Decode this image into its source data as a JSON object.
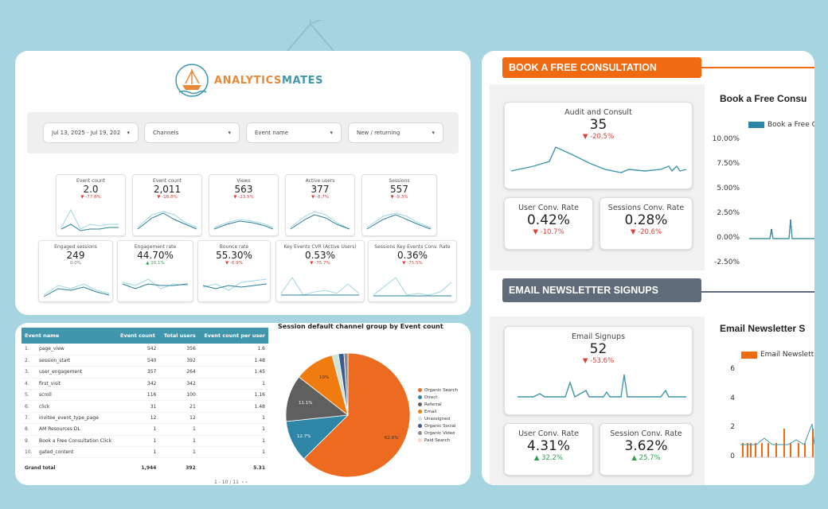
{
  "logo": {
    "part1": "ANALYTICS",
    "part2": "MATES"
  },
  "filters": [
    {
      "label": "Jul 13, 2025 - Jul 19, 202"
    },
    {
      "label": "Channels"
    },
    {
      "label": "Event name"
    },
    {
      "label": "New / returning"
    }
  ],
  "kpis_row1": [
    {
      "label": "Event count",
      "value": "2.0",
      "change": "▼ -77.8%",
      "dir": "down"
    },
    {
      "label": "Event count",
      "value": "2,011",
      "change": "▼ -18.8%",
      "dir": "down"
    },
    {
      "label": "Views",
      "value": "563",
      "change": "▼ -23.5%",
      "dir": "down"
    },
    {
      "label": "Active users",
      "value": "377",
      "change": "▼ -8.7%",
      "dir": "down"
    },
    {
      "label": "Sessions",
      "value": "557",
      "change": "▼ -9.3%",
      "dir": "down"
    }
  ],
  "kpis_row2": [
    {
      "label": "Engaged sessions",
      "value": "249",
      "change": "0.0%",
      "dir": "flat"
    },
    {
      "label": "Engagement rate",
      "value": "44.70%",
      "change": "▲ 10.1%",
      "dir": "up"
    },
    {
      "label": "Bounce rate",
      "value": "55.30%",
      "change": "▼ -6.9%",
      "dir": "down"
    },
    {
      "label": "Key Events CVR (Active Users)",
      "value": "0.53%",
      "change": "▼ -75.7%",
      "dir": "down"
    },
    {
      "label": "Sessions Key Events Conv. Rate",
      "value": "0.36%",
      "change": "▼ -75.5%",
      "dir": "down"
    }
  ],
  "table": {
    "headers": [
      "Event name",
      "Event count",
      "Total users",
      "Event count per user"
    ],
    "rows": [
      [
        "1.",
        "page_view",
        "542",
        "356",
        "1.6"
      ],
      [
        "2.",
        "session_start",
        "540",
        "392",
        "1.48"
      ],
      [
        "3.",
        "user_engagement",
        "357",
        "264",
        "1.45"
      ],
      [
        "4.",
        "first_visit",
        "342",
        "342",
        "1"
      ],
      [
        "5.",
        "scroll",
        "116",
        "100",
        "1.16"
      ],
      [
        "6.",
        "click",
        "31",
        "21",
        "1.48"
      ],
      [
        "7.",
        "invitee_event_type_page",
        "12",
        "12",
        "1"
      ],
      [
        "8.",
        "AM Resources DL",
        "1",
        "1",
        "1"
      ],
      [
        "9.",
        "Book a Free Consultation Click",
        "1",
        "1",
        "1"
      ],
      [
        "10.",
        "gated_content",
        "1",
        "1",
        "1"
      ]
    ],
    "total": [
      "Grand total",
      "1,944",
      "392",
      "5.31"
    ],
    "pager": "1 - 10 / 11"
  },
  "pie": {
    "title": "Session default channel group by Event count",
    "legend": [
      {
        "name": "Organic Search",
        "color": "#ed6b21"
      },
      {
        "name": "Direct",
        "color": "#2e86a6"
      },
      {
        "name": "Referral",
        "color": "#5f5f5f"
      },
      {
        "name": "Email",
        "color": "#f07c10"
      },
      {
        "name": "Unassigned",
        "color": "#cfe3d6"
      },
      {
        "name": "Organic Social",
        "color": "#3b5b8e"
      },
      {
        "name": "Organic Video",
        "color": "#8d8d8d"
      },
      {
        "name": "Paid Search",
        "color": "#f6d8c3"
      }
    ],
    "labels": {
      "organic": "62.6%",
      "direct": "12.7%",
      "referral": "11.1%",
      "email": "10%"
    }
  },
  "right": {
    "section1": "BOOK A FREE CONSULTATION",
    "section2": "EMAIL NEWSLETTER SIGNUPS",
    "audit": {
      "label": "Audit and Consult",
      "value": "35",
      "change": "▼ -20.5%"
    },
    "user_conv1": {
      "label": "User Conv. Rate",
      "value": "0.42%",
      "change": "▼ -10.7%"
    },
    "sess_conv1": {
      "label": "Sessions Conv. Rate",
      "value": "0.28%",
      "change": "▼ -20.6%"
    },
    "email": {
      "label": "Email Signups",
      "value": "52",
      "change": "▼ -53.6%"
    },
    "user_conv2": {
      "label": "User Conv. Rate",
      "value": "4.31%",
      "change": "▲ 32.2%"
    },
    "sess_conv2": {
      "label": "Session Conv. Rate",
      "value": "3.62%",
      "change": "▲ 25.7%"
    },
    "chart1_title": "Book a Free Consu",
    "chart1_legend": "Book a Free C",
    "chart1_ticks": [
      "10.00%",
      "7.50%",
      "5.00%",
      "2.50%",
      "0.00%",
      "-2.50%"
    ],
    "chart2_title": "Email Newsletter S",
    "chart2_legend": "Email Newslett",
    "chart2_ticks": [
      "6",
      "4",
      "2",
      "0"
    ],
    "accent_orange": "#ef6a10",
    "accent_slate": "#5f6b78"
  }
}
